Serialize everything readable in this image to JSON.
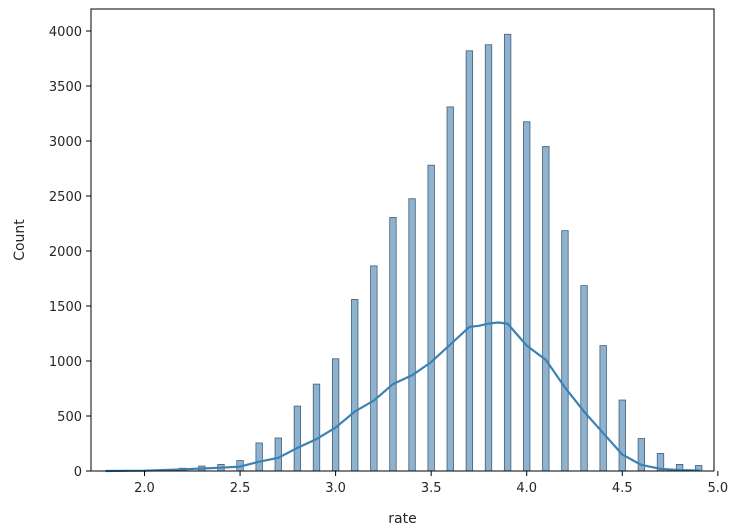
{
  "chart_data": {
    "type": "bar",
    "subtype": "histogram-with-kde",
    "xlabel": "rate",
    "ylabel": "Count",
    "xlim": [
      1.72,
      4.98
    ],
    "ylim": [
      0,
      4200
    ],
    "xticks": [
      2.0,
      2.5,
      3.0,
      3.5,
      4.0,
      4.5,
      5.0
    ],
    "xtick_labels": [
      "2.0",
      "2.5",
      "3.0",
      "3.5",
      "4.0",
      "4.5",
      "5.0"
    ],
    "yticks": [
      0,
      500,
      1000,
      1500,
      2000,
      2500,
      3000,
      3500,
      4000
    ],
    "ytick_labels": [
      "0",
      "500",
      "1000",
      "1500",
      "2000",
      "2500",
      "3000",
      "3500",
      "4000"
    ],
    "grid": false,
    "bar_width": 0.034,
    "bars": [
      {
        "x": 1.8,
        "count": 1
      },
      {
        "x": 1.9,
        "count": 2
      },
      {
        "x": 2.0,
        "count": 5
      },
      {
        "x": 2.1,
        "count": 10
      },
      {
        "x": 2.2,
        "count": 25
      },
      {
        "x": 2.3,
        "count": 45
      },
      {
        "x": 2.4,
        "count": 60
      },
      {
        "x": 2.5,
        "count": 95
      },
      {
        "x": 2.6,
        "count": 255
      },
      {
        "x": 2.7,
        "count": 300
      },
      {
        "x": 2.8,
        "count": 590
      },
      {
        "x": 2.9,
        "count": 790
      },
      {
        "x": 3.0,
        "count": 1020
      },
      {
        "x": 3.1,
        "count": 1560
      },
      {
        "x": 3.2,
        "count": 1865
      },
      {
        "x": 3.3,
        "count": 2305
      },
      {
        "x": 3.4,
        "count": 2475
      },
      {
        "x": 3.5,
        "count": 2780
      },
      {
        "x": 3.6,
        "count": 3310
      },
      {
        "x": 3.7,
        "count": 3820
      },
      {
        "x": 3.8,
        "count": 3875
      },
      {
        "x": 3.9,
        "count": 3970
      },
      {
        "x": 4.0,
        "count": 3175
      },
      {
        "x": 4.1,
        "count": 2950
      },
      {
        "x": 4.2,
        "count": 2185
      },
      {
        "x": 4.3,
        "count": 1685
      },
      {
        "x": 4.4,
        "count": 1140
      },
      {
        "x": 4.5,
        "count": 645
      },
      {
        "x": 4.6,
        "count": 295
      },
      {
        "x": 4.7,
        "count": 160
      },
      {
        "x": 4.8,
        "count": 60
      },
      {
        "x": 4.9,
        "count": 50
      }
    ],
    "kde_curve": {
      "x": [
        1.8,
        2.0,
        2.2,
        2.4,
        2.5,
        2.6,
        2.7,
        2.8,
        2.9,
        3.0,
        3.1,
        3.2,
        3.3,
        3.4,
        3.5,
        3.6,
        3.7,
        3.75,
        3.8,
        3.85,
        3.9,
        4.0,
        4.1,
        4.2,
        4.3,
        4.4,
        4.5,
        4.6,
        4.7,
        4.8,
        4.9
      ],
      "y": [
        0,
        3,
        15,
        30,
        40,
        85,
        120,
        210,
        290,
        395,
        540,
        640,
        790,
        870,
        990,
        1150,
        1310,
        1320,
        1340,
        1350,
        1340,
        1140,
        1010,
        760,
        540,
        345,
        150,
        55,
        20,
        8,
        5
      ]
    },
    "colors": {
      "bar_fill": "#8fb3cf",
      "bar_edge": "#3f5e78",
      "kde_line": "#3a82b4",
      "axis": "#000000"
    }
  }
}
